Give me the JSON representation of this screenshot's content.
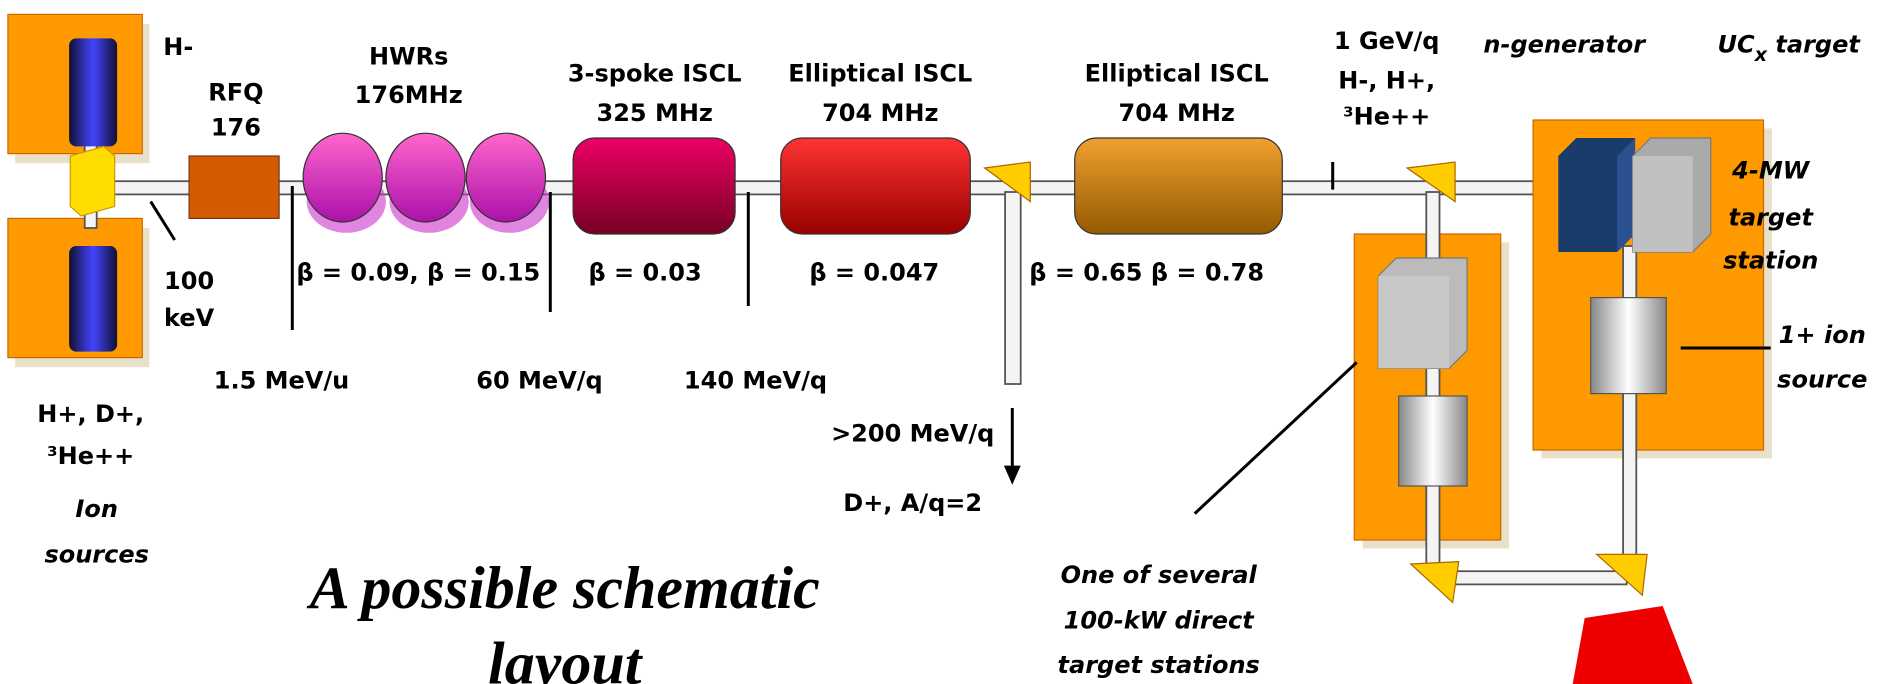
{
  "labels": {
    "h_minus": "H-",
    "rfq": [
      "RFQ",
      "176"
    ],
    "hwrs": [
      "HWRs",
      "176MHz"
    ],
    "spoke": [
      "3-spoke ISCL",
      "325 MHz"
    ],
    "elliptical_1": [
      "Elliptical ISCL",
      "704 MHz"
    ],
    "elliptical_2": [
      "Elliptical ISCL",
      "704 MHz"
    ],
    "gev": [
      "1 GeV/q",
      "H-, H+,",
      "³He++"
    ],
    "n_generator": "n-generator",
    "ucx_target": {
      "base": "UC",
      "sub": "x",
      "rest": " target"
    },
    "target_station": [
      "4-MW",
      "target",
      "station"
    ],
    "ion_source_1plus": [
      "1+ ion",
      "source"
    ],
    "kev": [
      "100",
      "keV"
    ],
    "betas": [
      "β = 0.09, β = 0.15",
      "β = 0.03",
      "β = 0.047",
      "β = 0.65  β = 0.78"
    ],
    "energies": [
      "1.5 MeV/u",
      "60 MeV/q",
      "140 MeV/q"
    ],
    "branch": [
      ">200 MeV/q",
      "D+, A/q=2"
    ],
    "source_ions": [
      "H+, D+,",
      "³He++"
    ],
    "ion_sources": [
      "Ion",
      "sources"
    ],
    "title": [
      "A possible schematic",
      "layout"
    ],
    "direct_stations": [
      "One of several",
      "100-kW direct",
      "target stations"
    ]
  }
}
